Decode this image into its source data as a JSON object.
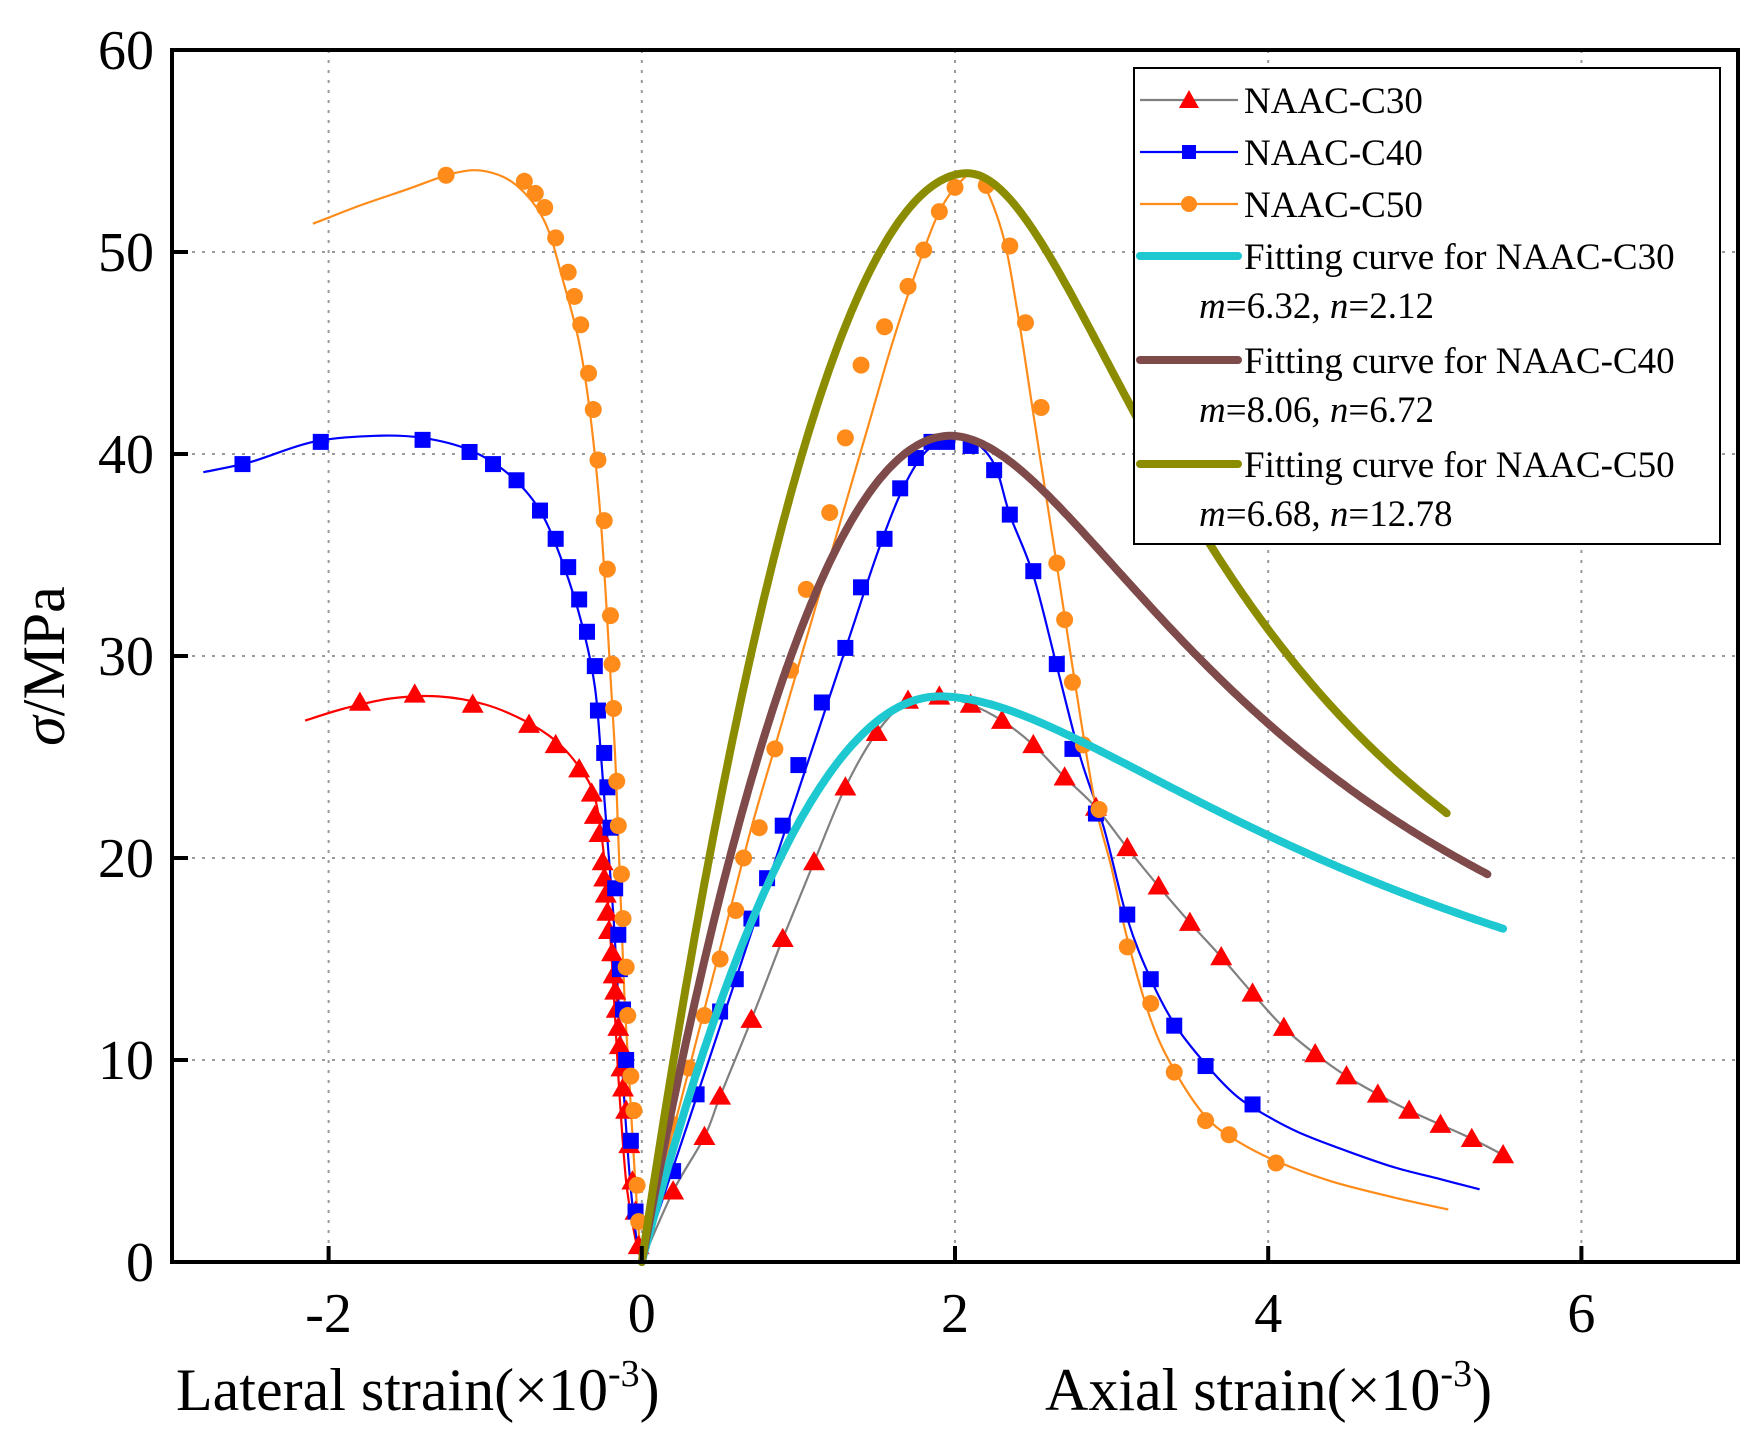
{
  "chart_data": {
    "type": "line",
    "title": "",
    "xlabel_left": "Lateral strain(×10",
    "xlabel_right": "Axial strain(×10",
    "xlabel_exp": "-3",
    "xlabel_close": ")",
    "ylabel_symbol": "σ",
    "ylabel_unit": "/MPa",
    "xlim": [
      -3.0,
      7.0
    ],
    "ylim": [
      0,
      60
    ],
    "x_ticks": [
      -2,
      0,
      2,
      4,
      6
    ],
    "x_tick_labels": [
      "-2",
      "0",
      "2",
      "4",
      "6"
    ],
    "y_ticks": [
      0,
      10,
      20,
      30,
      40,
      50,
      60
    ],
    "y_tick_labels": [
      "0",
      "10",
      "20",
      "30",
      "40",
      "50",
      "60"
    ],
    "grid": true,
    "legend_position": "top-right",
    "series": [
      {
        "name": "NAAC-C30",
        "color": "#ff0000",
        "line_color": "#808080",
        "marker": "triangle",
        "axial": [
          [
            0,
            0
          ],
          [
            0.2,
            3.5
          ],
          [
            0.4,
            6.2
          ],
          [
            0.5,
            8.2
          ],
          [
            0.7,
            12.0
          ],
          [
            0.9,
            16.0
          ],
          [
            1.1,
            19.8
          ],
          [
            1.3,
            23.5
          ],
          [
            1.5,
            26.2
          ],
          [
            1.7,
            27.8
          ],
          [
            1.9,
            28.0
          ],
          [
            2.1,
            27.6
          ],
          [
            2.3,
            26.8
          ],
          [
            2.5,
            25.6
          ],
          [
            2.7,
            24.0
          ],
          [
            2.9,
            22.5
          ],
          [
            3.1,
            20.5
          ],
          [
            3.3,
            18.6
          ],
          [
            3.5,
            16.8
          ],
          [
            3.7,
            15.1
          ],
          [
            3.9,
            13.3
          ],
          [
            4.1,
            11.6
          ],
          [
            4.3,
            10.3
          ],
          [
            4.5,
            9.2
          ],
          [
            4.7,
            8.3
          ],
          [
            4.9,
            7.5
          ],
          [
            5.1,
            6.8
          ],
          [
            5.3,
            6.1
          ],
          [
            5.5,
            5.3
          ]
        ],
        "lateral_line": [
          [
            0,
            0
          ],
          [
            -0.02,
            0.5
          ],
          [
            -0.05,
            1.5
          ],
          [
            -0.1,
            4
          ],
          [
            -0.14,
            8
          ],
          [
            -0.17,
            12
          ],
          [
            -0.2,
            16
          ],
          [
            -0.24,
            20
          ],
          [
            -0.3,
            23
          ],
          [
            -0.4,
            24.5
          ],
          [
            -0.55,
            25.8
          ],
          [
            -0.75,
            26.8
          ],
          [
            -1.0,
            27.6
          ],
          [
            -1.3,
            28.0
          ],
          [
            -1.6,
            27.9
          ],
          [
            -1.9,
            27.4
          ],
          [
            -2.15,
            26.8
          ]
        ],
        "lateral_markers": [
          [
            -0.02,
            0.8
          ],
          [
            -0.04,
            2.5
          ],
          [
            -0.06,
            4
          ],
          [
            -0.08,
            5.8
          ],
          [
            -0.1,
            7.5
          ],
          [
            -0.12,
            8.6
          ],
          [
            -0.13,
            9.6
          ],
          [
            -0.14,
            10.7
          ],
          [
            -0.15,
            11.6
          ],
          [
            -0.16,
            12.5
          ],
          [
            -0.17,
            13.4
          ],
          [
            -0.18,
            14.2
          ],
          [
            -0.19,
            15.3
          ],
          [
            -0.21,
            16.4
          ],
          [
            -0.22,
            17.3
          ],
          [
            -0.23,
            18.2
          ],
          [
            -0.24,
            19.0
          ],
          [
            -0.25,
            19.8
          ],
          [
            -0.27,
            21.2
          ],
          [
            -0.3,
            22.1
          ],
          [
            -0.32,
            23.2
          ],
          [
            -0.4,
            24.4
          ],
          [
            -0.55,
            25.6
          ],
          [
            -0.72,
            26.6
          ],
          [
            -1.08,
            27.6
          ],
          [
            -1.45,
            28.1
          ],
          [
            -1.8,
            27.7
          ]
        ]
      },
      {
        "name": "NAAC-C40",
        "color": "#0000ff",
        "line_color": "#0000ff",
        "marker": "square",
        "axial": [
          [
            0,
            0
          ],
          [
            0.15,
            3.5
          ],
          [
            0.3,
            7.0
          ],
          [
            0.45,
            10.5
          ],
          [
            0.6,
            14.0
          ],
          [
            0.75,
            17.5
          ],
          [
            0.9,
            21.0
          ],
          [
            1.05,
            24.5
          ],
          [
            1.2,
            28.0
          ],
          [
            1.35,
            31.5
          ],
          [
            1.5,
            35.0
          ],
          [
            1.65,
            38.0
          ],
          [
            1.8,
            40.0
          ],
          [
            1.95,
            40.7
          ],
          [
            2.1,
            40.7
          ],
          [
            2.25,
            39.5
          ],
          [
            2.35,
            37.0
          ],
          [
            2.5,
            34.0
          ],
          [
            2.65,
            29.5
          ],
          [
            2.8,
            25.0
          ],
          [
            2.95,
            21.5
          ],
          [
            3.1,
            17.0
          ],
          [
            3.25,
            14.0
          ],
          [
            3.4,
            11.8
          ],
          [
            3.6,
            9.8
          ],
          [
            3.8,
            8.2
          ],
          [
            4.0,
            7.2
          ],
          [
            4.2,
            6.4
          ],
          [
            4.5,
            5.5
          ],
          [
            4.8,
            4.7
          ],
          [
            5.1,
            4.1
          ],
          [
            5.35,
            3.6
          ]
        ],
        "markers_axial": [
          [
            0.2,
            4.5
          ],
          [
            0.35,
            8.3
          ],
          [
            0.5,
            12.4
          ],
          [
            0.6,
            14.0
          ],
          [
            0.7,
            17.0
          ],
          [
            0.8,
            19.0
          ],
          [
            0.9,
            21.6
          ],
          [
            1.0,
            24.6
          ],
          [
            1.15,
            27.7
          ],
          [
            1.3,
            30.4
          ],
          [
            1.4,
            33.4
          ],
          [
            1.55,
            35.8
          ],
          [
            1.65,
            38.3
          ],
          [
            1.75,
            39.8
          ],
          [
            1.85,
            40.6
          ],
          [
            1.95,
            40.6
          ],
          [
            2.1,
            40.4
          ],
          [
            2.25,
            39.2
          ],
          [
            2.35,
            37.0
          ],
          [
            2.5,
            34.2
          ],
          [
            2.65,
            29.6
          ],
          [
            2.75,
            25.4
          ],
          [
            2.9,
            22.2
          ],
          [
            3.1,
            17.2
          ],
          [
            3.25,
            14.0
          ],
          [
            3.4,
            11.7
          ],
          [
            3.6,
            9.7
          ],
          [
            3.9,
            7.8
          ]
        ],
        "lateral_line": [
          [
            0,
            0
          ],
          [
            -0.04,
            1.5
          ],
          [
            -0.08,
            4.5
          ],
          [
            -0.12,
            9
          ],
          [
            -0.15,
            13
          ],
          [
            -0.18,
            17
          ],
          [
            -0.22,
            21
          ],
          [
            -0.26,
            25
          ],
          [
            -0.3,
            28.5
          ],
          [
            -0.38,
            31.5
          ],
          [
            -0.5,
            34.5
          ],
          [
            -0.65,
            37.2
          ],
          [
            -0.85,
            39.0
          ],
          [
            -1.1,
            40.2
          ],
          [
            -1.4,
            40.8
          ],
          [
            -1.7,
            40.9
          ],
          [
            -2.1,
            40.6
          ],
          [
            -2.5,
            39.6
          ],
          [
            -2.8,
            39.1
          ]
        ],
        "lateral_markers": [
          [
            -0.04,
            2.5
          ],
          [
            -0.07,
            6
          ],
          [
            -0.1,
            10
          ],
          [
            -0.12,
            12.5
          ],
          [
            -0.14,
            14.5
          ],
          [
            -0.15,
            16.2
          ],
          [
            -0.17,
            18.5
          ],
          [
            -0.2,
            21.5
          ],
          [
            -0.22,
            23.5
          ],
          [
            -0.24,
            25.2
          ],
          [
            -0.28,
            27.3
          ],
          [
            -0.3,
            29.5
          ],
          [
            -0.35,
            31.2
          ],
          [
            -0.4,
            32.8
          ],
          [
            -0.47,
            34.4
          ],
          [
            -0.55,
            35.8
          ],
          [
            -0.65,
            37.2
          ],
          [
            -0.8,
            38.7
          ],
          [
            -0.95,
            39.5
          ],
          [
            -1.1,
            40.1
          ],
          [
            -1.4,
            40.7
          ],
          [
            -2.05,
            40.6
          ],
          [
            -2.55,
            39.5
          ]
        ]
      },
      {
        "name": "NAAC-C50",
        "color": "#ff8c1a",
        "line_color": "#ff8c1a",
        "marker": "circle",
        "axial": [
          [
            0,
            0
          ],
          [
            0.1,
            3.5
          ],
          [
            0.25,
            8.0
          ],
          [
            0.4,
            12.5
          ],
          [
            0.55,
            17.0
          ],
          [
            0.7,
            21.5
          ],
          [
            0.85,
            25.5
          ],
          [
            1.0,
            29.5
          ],
          [
            1.15,
            33.5
          ],
          [
            1.3,
            37.5
          ],
          [
            1.45,
            41.5
          ],
          [
            1.6,
            45.5
          ],
          [
            1.75,
            49.0
          ],
          [
            1.9,
            52.0
          ],
          [
            2.05,
            53.6
          ],
          [
            2.15,
            53.8
          ],
          [
            2.3,
            51.0
          ],
          [
            2.4,
            47.0
          ],
          [
            2.5,
            42.0
          ],
          [
            2.6,
            37.0
          ],
          [
            2.7,
            32.0
          ],
          [
            2.8,
            27.0
          ],
          [
            2.9,
            22.5
          ],
          [
            3.0,
            19.5
          ],
          [
            3.1,
            16.0
          ],
          [
            3.25,
            12.0
          ],
          [
            3.4,
            9.5
          ],
          [
            3.6,
            7.2
          ],
          [
            3.8,
            6.0
          ],
          [
            4.05,
            5.0
          ],
          [
            4.4,
            4.0
          ],
          [
            4.8,
            3.2
          ],
          [
            5.15,
            2.6
          ]
        ],
        "markers_axial": [
          [
            0.1,
            3.7
          ],
          [
            0.2,
            6.8
          ],
          [
            0.3,
            9.6
          ],
          [
            0.4,
            12.2
          ],
          [
            0.5,
            15.0
          ],
          [
            0.6,
            17.4
          ],
          [
            0.65,
            20.0
          ],
          [
            0.75,
            21.5
          ],
          [
            0.85,
            25.4
          ],
          [
            0.95,
            29.3
          ],
          [
            1.05,
            33.3
          ],
          [
            1.2,
            37.1
          ],
          [
            1.3,
            40.8
          ],
          [
            1.4,
            44.4
          ],
          [
            1.55,
            46.3
          ],
          [
            1.7,
            48.3
          ],
          [
            1.8,
            50.1
          ],
          [
            1.9,
            52.0
          ],
          [
            2.0,
            53.2
          ],
          [
            2.2,
            53.3
          ],
          [
            2.35,
            50.3
          ],
          [
            2.45,
            46.5
          ],
          [
            2.55,
            42.3
          ],
          [
            2.65,
            34.6
          ],
          [
            2.7,
            31.8
          ],
          [
            2.75,
            28.7
          ],
          [
            2.82,
            25.6
          ],
          [
            2.92,
            22.4
          ],
          [
            3.1,
            15.6
          ],
          [
            3.25,
            12.8
          ],
          [
            3.4,
            9.4
          ],
          [
            3.6,
            7.0
          ],
          [
            3.75,
            6.3
          ],
          [
            4.05,
            4.9
          ]
        ],
        "lateral_line": [
          [
            0,
            0
          ],
          [
            -0.02,
            1.5
          ],
          [
            -0.05,
            5
          ],
          [
            -0.08,
            9
          ],
          [
            -0.11,
            13
          ],
          [
            -0.13,
            17
          ],
          [
            -0.15,
            21
          ],
          [
            -0.17,
            25
          ],
          [
            -0.2,
            29
          ],
          [
            -0.23,
            33
          ],
          [
            -0.27,
            37.5
          ],
          [
            -0.33,
            42
          ],
          [
            -0.4,
            45.5
          ],
          [
            -0.5,
            48.5
          ],
          [
            -0.62,
            51.5
          ],
          [
            -0.8,
            53.3
          ],
          [
            -1.0,
            54.0
          ],
          [
            -1.2,
            53.9
          ],
          [
            -1.5,
            53.1
          ],
          [
            -1.8,
            52.3
          ],
          [
            -2.0,
            51.7
          ],
          [
            -2.1,
            51.4
          ]
        ],
        "lateral_markers": [
          [
            -0.02,
            2.0
          ],
          [
            -0.03,
            3.8
          ],
          [
            -0.05,
            7.5
          ],
          [
            -0.07,
            9.2
          ],
          [
            -0.09,
            12.2
          ],
          [
            -0.1,
            14.6
          ],
          [
            -0.12,
            17.0
          ],
          [
            -0.13,
            19.2
          ],
          [
            -0.15,
            21.6
          ],
          [
            -0.16,
            23.8
          ],
          [
            -0.18,
            27.4
          ],
          [
            -0.19,
            29.6
          ],
          [
            -0.2,
            32.0
          ],
          [
            -0.22,
            34.3
          ],
          [
            -0.24,
            36.7
          ],
          [
            -0.28,
            39.7
          ],
          [
            -0.31,
            42.2
          ],
          [
            -0.34,
            44.0
          ],
          [
            -0.39,
            46.4
          ],
          [
            -0.43,
            47.8
          ],
          [
            -0.47,
            49.0
          ],
          [
            -0.55,
            50.7
          ],
          [
            -0.62,
            52.2
          ],
          [
            -0.68,
            52.9
          ],
          [
            -0.75,
            53.5
          ],
          [
            -1.25,
            53.8
          ]
        ]
      }
    ],
    "fits": [
      {
        "name": "Fitting curve for NAAC-C30",
        "params": {
          "m": "6.32",
          "n": "2.12"
        },
        "color": "#1ec8d0",
        "peak_strain": 1.9,
        "peak_stress": 28.0,
        "m": 6.32,
        "n": 2.12,
        "x_end": 5.5
      },
      {
        "name": "Fitting curve for NAAC-C40",
        "params": {
          "m": "8.06",
          "n": "6.72"
        },
        "color": "#7f4a4a",
        "peak_strain": 1.97,
        "peak_stress": 40.9,
        "m": 8.06,
        "n": 6.72,
        "x_end": 5.4
      },
      {
        "name": "Fitting curve for NAAC-C50",
        "params": {
          "m": "6.68",
          "n": "12.78"
        },
        "color": "#8c8c00",
        "peak_strain": 2.08,
        "peak_stress": 53.9,
        "m": 6.68,
        "n": 12.78,
        "x_end": 5.15
      }
    ],
    "legend_param_m": "m",
    "legend_param_n": "n",
    "legend_eq": "=",
    "legend_sep": ", "
  }
}
